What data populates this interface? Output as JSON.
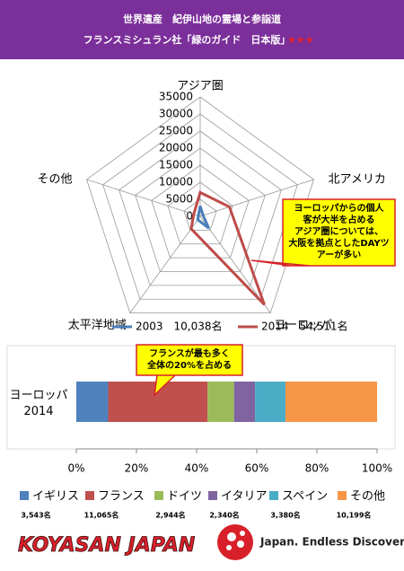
{
  "header": {
    "title": "世界遺産　紀伊山地の霊場と参詣道",
    "subtitle": "フランスミシュラン社「緑のガイド　日本版」",
    "stars": "★★★"
  },
  "chart_data": [
    {
      "type": "radar",
      "categories": [
        "アジア圏",
        "北アメリカ",
        "ヨーロッパ",
        "太平洋地域",
        "その他"
      ],
      "series": [
        {
          "name": "2003　10,038名",
          "color": "#4a7ebb",
          "values": [
            3000,
            900,
            4300,
            1200,
            600
          ]
        },
        {
          "name": "2014　54,511名",
          "color": "#be4b48",
          "values": [
            7000,
            9000,
            32000,
            4500,
            2000
          ]
        }
      ],
      "rlim": [
        0,
        35000
      ],
      "rticks": [
        0,
        5000,
        10000,
        15000,
        20000,
        25000,
        30000,
        35000
      ],
      "annotation": [
        "ヨーロッパからの個人",
        "客が大半を占める",
        "アジア圏については、",
        "大阪を拠点としたDAYツ",
        "アーが多い"
      ]
    },
    {
      "type": "stacked-bar-horizontal",
      "categories": [
        "ヨーロッパ\n2014"
      ],
      "series": [
        {
          "name": "イギリス",
          "color": "#4f81bd",
          "values": [
            10.59
          ],
          "count": "3,543名"
        },
        {
          "name": "フランス",
          "color": "#c0504d",
          "values": [
            33.06
          ],
          "count": "11,065名"
        },
        {
          "name": "ドイツ",
          "color": "#9bbb59",
          "values": [
            8.8
          ],
          "count": "2,944名"
        },
        {
          "name": "イタリア",
          "color": "#8064a2",
          "values": [
            6.99
          ],
          "count": "2,340名"
        },
        {
          "name": "スペイン",
          "color": "#4bacc6",
          "values": [
            10.1
          ],
          "count": "3,380名"
        },
        {
          "name": "その他",
          "color": "#f79646",
          "values": [
            30.47
          ],
          "count": "10,199名"
        }
      ],
      "xlim": [
        0,
        100
      ],
      "xticks": [
        {
          "value": 0,
          "label": "0%"
        },
        {
          "value": 20,
          "label": "20%"
        },
        {
          "value": 40,
          "label": "40%"
        },
        {
          "value": 60,
          "label": "60%"
        },
        {
          "value": 80,
          "label": "80%"
        },
        {
          "value": 100,
          "label": "100%"
        }
      ],
      "annotation": [
        "フランスが最も多く",
        "全体の20%を占める"
      ]
    }
  ],
  "footer": {
    "logo": "KOYASAN JAPAN",
    "brand": "Japan. Endless Discovery."
  }
}
